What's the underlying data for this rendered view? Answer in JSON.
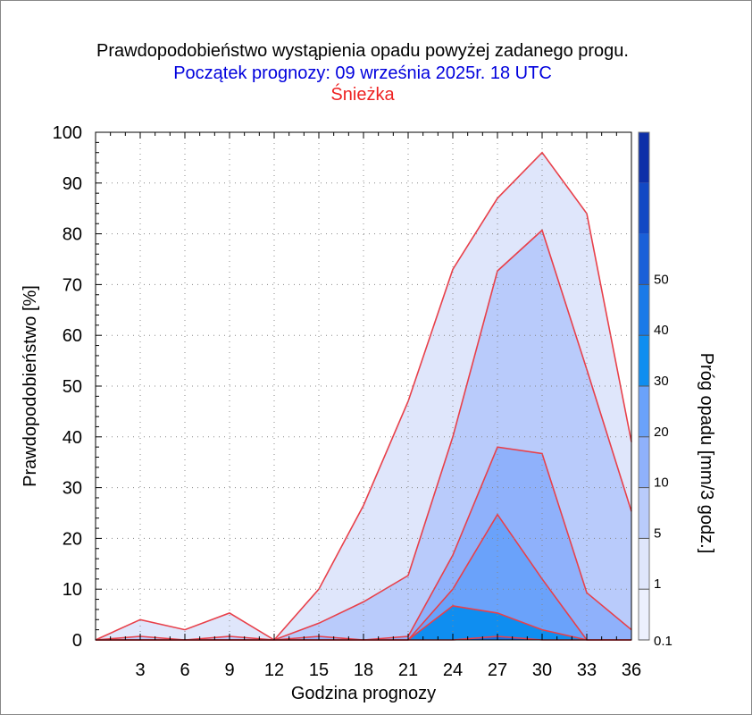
{
  "header": {
    "title": "Prawdopodobieństwo wystąpienia opadu powyżej zadanego progu.",
    "subtitle": "Początek prognozy: 09 września 2025r. 18 UTC",
    "location": "Śnieżka"
  },
  "colors": {
    "subtitle": "#0000dd",
    "location": "#ee2222",
    "series_line": "#e8404a"
  },
  "chart_data": {
    "type": "area",
    "xlabel": "Godzina prognozy",
    "ylabel": "Prawdopodobieństwo [%]",
    "x": [
      0,
      3,
      6,
      9,
      12,
      15,
      18,
      21,
      24,
      27,
      30,
      33,
      36
    ],
    "xticks": [
      3,
      6,
      9,
      12,
      15,
      18,
      21,
      24,
      27,
      30,
      33,
      36
    ],
    "xlim": [
      0,
      36
    ],
    "yticks": [
      0,
      10,
      20,
      30,
      40,
      50,
      60,
      70,
      80,
      90,
      100
    ],
    "ylim": [
      0,
      100
    ],
    "grid": true,
    "series": [
      {
        "threshold": 0.1,
        "color": "#dfe6fb",
        "values": [
          0,
          4,
          2,
          5.3,
          0,
          10,
          26.5,
          47,
          73,
          87,
          96,
          84,
          39
        ]
      },
      {
        "threshold": 1,
        "color": "#b9cbfb",
        "values": [
          0,
          0.7,
          0,
          0.7,
          0,
          3.3,
          7.5,
          12.7,
          40,
          72.7,
          80.7,
          53.3,
          25.3
        ]
      },
      {
        "threshold": 5,
        "color": "#8fb1fb",
        "values": [
          0,
          0,
          0,
          0,
          0,
          0.7,
          0,
          0.7,
          16.7,
          38,
          36.7,
          9.3,
          2
        ]
      },
      {
        "threshold": 10,
        "color": "#6aa2fa",
        "values": [
          0,
          0,
          0,
          0,
          0,
          0,
          0,
          0,
          10,
          24.7,
          12,
          0,
          0
        ]
      },
      {
        "threshold": 20,
        "color": "#0f8ef0",
        "values": [
          0,
          0,
          0,
          0,
          0,
          0,
          0,
          0,
          6.7,
          5.3,
          2,
          0,
          0
        ]
      },
      {
        "threshold": 30,
        "color": "#1a6fe0",
        "values": [
          0,
          0,
          0,
          0,
          0,
          0,
          0,
          0,
          0,
          0.7,
          0,
          0,
          0
        ]
      }
    ],
    "colorbar": {
      "label": "Próg opadu [mm/3 godz.]",
      "ticks": [
        "0.1",
        "1",
        "5",
        "10",
        "20",
        "30",
        "40",
        "50"
      ],
      "colors": [
        "#ecf0fd",
        "#dfe6fb",
        "#b9cbfb",
        "#8fb1fb",
        "#6aa2fa",
        "#0f8ef0",
        "#1a7ae8",
        "#1a60d8",
        "#1249c4",
        "#0d2fa8"
      ]
    }
  }
}
